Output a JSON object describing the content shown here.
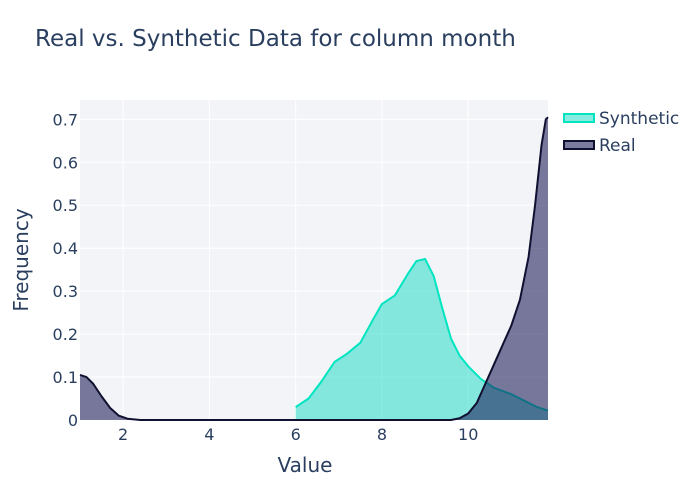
{
  "chart_data": {
    "type": "area",
    "title": "Real vs. Synthetic Data for column month",
    "xlabel": "Value",
    "ylabel": "Frequency",
    "xlim": [
      1,
      11.85
    ],
    "ylim": [
      0,
      0.745
    ],
    "x_ticks": [
      2,
      4,
      6,
      8,
      10
    ],
    "y_ticks": [
      0,
      0.1,
      0.2,
      0.3,
      0.4,
      0.5,
      0.6,
      0.7
    ],
    "x_tick_labels": [
      "2",
      "4",
      "6",
      "8",
      "10"
    ],
    "y_tick_labels": [
      "0",
      "0.1",
      "0.2",
      "0.3",
      "0.4",
      "0.5",
      "0.6",
      "0.7"
    ],
    "grid": true,
    "legend_position": "top-right",
    "series": [
      {
        "name": "Synthetic",
        "color": "#00e5c0",
        "fill": "rgba(40,220,200,0.55)",
        "x": [
          6.0,
          6.3,
          6.6,
          6.9,
          7.2,
          7.5,
          7.8,
          8.0,
          8.3,
          8.6,
          8.8,
          9.0,
          9.2,
          9.4,
          9.6,
          9.8,
          10.0,
          10.3,
          10.6,
          11.0,
          11.3,
          11.6,
          11.85
        ],
        "y": [
          0.03,
          0.05,
          0.09,
          0.135,
          0.155,
          0.18,
          0.235,
          0.27,
          0.29,
          0.34,
          0.37,
          0.375,
          0.335,
          0.26,
          0.19,
          0.15,
          0.125,
          0.095,
          0.075,
          0.06,
          0.045,
          0.03,
          0.022
        ]
      },
      {
        "name": "Real",
        "color": "#101030",
        "fill": "rgba(30,30,90,0.58)",
        "x": [
          1.0,
          1.15,
          1.3,
          1.5,
          1.7,
          1.9,
          2.1,
          2.4,
          3.0,
          5.0,
          7.0,
          9.0,
          9.6,
          9.8,
          10.0,
          10.2,
          10.4,
          10.6,
          10.8,
          11.0,
          11.2,
          11.4,
          11.55,
          11.7,
          11.8,
          11.85
        ],
        "y": [
          0.105,
          0.1,
          0.085,
          0.055,
          0.028,
          0.01,
          0.003,
          0.0,
          0.0,
          0.0,
          0.0,
          0.0,
          0.0,
          0.004,
          0.015,
          0.04,
          0.085,
          0.13,
          0.175,
          0.22,
          0.28,
          0.38,
          0.5,
          0.64,
          0.7,
          0.705
        ]
      }
    ]
  }
}
